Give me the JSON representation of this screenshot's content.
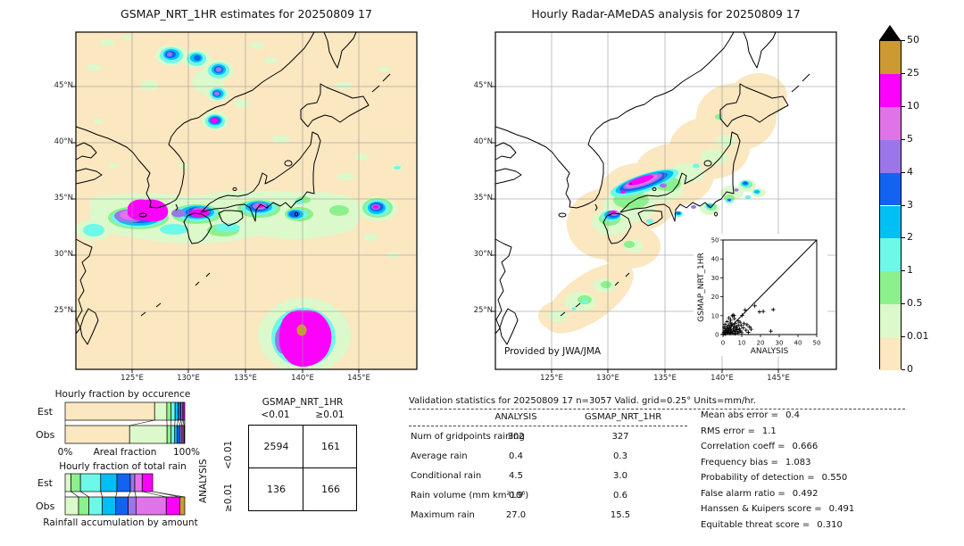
{
  "palette": {
    "cream": "#fbe7c0",
    "palegreen": "#dcf9cb",
    "green": "#8cf18c",
    "cyan": "#6ef8e8",
    "skyblue": "#00bff5",
    "blue": "#1263f0",
    "purple": "#9a76ea",
    "orchid": "#e173e8",
    "magenta": "#fb02fb",
    "tan": "#cc9933",
    "overflow": "#000000"
  },
  "left_map": {
    "title": "GSMAP_NRT_1HR estimates for 20250809 17",
    "lat_ticks": [
      "45°N",
      "40°N",
      "35°N",
      "30°N",
      "25°N"
    ],
    "lon_ticks": [
      "125°E",
      "130°E",
      "135°E",
      "140°E",
      "145°E"
    ]
  },
  "right_map": {
    "title": "Hourly Radar-AMeDAS analysis for 20250809 17",
    "lat_ticks": [
      "45°N",
      "40°N",
      "35°N",
      "30°N",
      "25°N"
    ],
    "lon_ticks": [
      "125°E",
      "130°E",
      "135°E",
      "140°E",
      "145°E"
    ],
    "credit": "Provided by JWA/JMA",
    "inset": {
      "xlabel": "ANALYSIS",
      "ylabel": "GSMAP_NRT_1HR",
      "tick_labels": [
        "0",
        "10",
        "20",
        "30",
        "40",
        "50"
      ],
      "axis_max": 50
    }
  },
  "colorbar": {
    "labels": [
      "50",
      "25",
      "10",
      "5",
      "4",
      "3",
      "2",
      "1",
      "0.5",
      "0.01",
      "0"
    ],
    "band_colors": [
      "#cc9933",
      "#fb02fb",
      "#e173e8",
      "#9a76ea",
      "#1263f0",
      "#00bff5",
      "#6ef8e8",
      "#8cf18c",
      "#dcf9cb",
      "#fbe7c0"
    ],
    "overflow_color": "#000000"
  },
  "occurrence_chart": {
    "title": "Hourly fraction by occurence",
    "row_labels": [
      "Est",
      "Obs"
    ],
    "axis_left": "0%",
    "axis_label": "Areal fraction",
    "axis_right": "100%",
    "est": [
      [
        "cream",
        74.8
      ],
      [
        "palegreen",
        10.2
      ],
      [
        "green",
        3.6
      ],
      [
        "cyan",
        3.3
      ],
      [
        "skyblue",
        2.6
      ],
      [
        "blue",
        2.2
      ],
      [
        "purple",
        1.3
      ],
      [
        "orchid",
        1.1
      ],
      [
        "magenta",
        0.9
      ]
    ],
    "obs": [
      [
        "cream",
        53.9
      ],
      [
        "palegreen",
        31.3
      ],
      [
        "green",
        3.4
      ],
      [
        "cyan",
        3.0
      ],
      [
        "skyblue",
        2.1
      ],
      [
        "blue",
        2.0
      ],
      [
        "purple",
        1.5
      ],
      [
        "orchid",
        1.2
      ],
      [
        "magenta",
        1.1
      ],
      [
        "tan",
        0.5
      ]
    ]
  },
  "totalrain_chart": {
    "title": "Hourly fraction of total rain",
    "row_labels": [
      "Est",
      "Obs"
    ],
    "footer": "Rainfall accumulation by amount",
    "est": [
      [
        "palegreen",
        4.9
      ],
      [
        "green",
        7.9
      ],
      [
        "cyan",
        16.9
      ],
      [
        "skyblue",
        13.6
      ],
      [
        "blue",
        11.2
      ],
      [
        "purple",
        3.7
      ],
      [
        "orchid",
        6.2
      ],
      [
        "magenta",
        8.8
      ]
    ],
    "obs": [
      [
        "palegreen",
        11.2
      ],
      [
        "green",
        8.7
      ],
      [
        "cyan",
        11.2
      ],
      [
        "skyblue",
        11.2
      ],
      [
        "blue",
        10.4
      ],
      [
        "purple",
        6.5
      ],
      [
        "orchid",
        25.3
      ],
      [
        "magenta",
        11.3
      ],
      [
        "tan",
        4.2
      ]
    ]
  },
  "contingency": {
    "col_title": "GSMAP_NRT_1HR",
    "row_title": "ANALYSIS",
    "col_labels": [
      "<0.01",
      "≥0.01"
    ],
    "row_labels": [
      "<0.01",
      "≥0.01"
    ],
    "values": [
      [
        "2594",
        "161"
      ],
      [
        "136",
        "166"
      ]
    ]
  },
  "stats_table": {
    "title": "Validation statistics for 20250809 17  n=3057 Valid. grid=0.25° Units=mm/hr.",
    "columns": [
      "ANALYSIS",
      "GSMAP_NRT_1HR"
    ],
    "rows": [
      {
        "label": "Num of gridpoints raining",
        "a": "302",
        "g": "327"
      },
      {
        "label": "Average rain",
        "a": "0.4",
        "g": "0.3"
      },
      {
        "label": "Conditional rain",
        "a": "4.5",
        "g": "3.0"
      },
      {
        "label": "Rain volume (mm km²10⁶)",
        "a": "0.9",
        "g": "0.6"
      },
      {
        "label": "Maximum rain",
        "a": "27.0",
        "g": "15.5"
      }
    ]
  },
  "metrics": {
    "rows": [
      {
        "label": "Mean abs error =",
        "value": "0.4"
      },
      {
        "label": "RMS error =",
        "value": "1.1"
      },
      {
        "label": "Correlation coeff =",
        "value": "0.666"
      },
      {
        "label": "Frequency bias =",
        "value": "1.083"
      },
      {
        "label": "Probability of detection =",
        "value": "0.550"
      },
      {
        "label": "False alarm ratio =",
        "value": "0.492"
      },
      {
        "label": "Hanssen & Kuipers score =",
        "value": "0.491"
      },
      {
        "label": "Equitable threat score =",
        "value": "0.310"
      }
    ]
  },
  "chart_data": [
    {
      "type": "heatmap",
      "title": "GSMAP_NRT_1HR estimates for 20250809 17",
      "x_ticks": [
        "125°E",
        "130°E",
        "135°E",
        "140°E",
        "145°E"
      ],
      "y_ticks": [
        "45°N",
        "40°N",
        "35°N",
        "30°N",
        "25°N"
      ],
      "units": "mm/hr",
      "levels": [
        0,
        0.01,
        0.5,
        1,
        2,
        3,
        4,
        5,
        10,
        25,
        50
      ],
      "level_colors": [
        "#fbe7c0",
        "#dcf9cb",
        "#8cf18c",
        "#6ef8e8",
        "#00bff5",
        "#1263f0",
        "#9a76ea",
        "#e173e8",
        "#fb02fb",
        "#cc9933"
      ],
      "description": "Satellite precipitation estimate over Japan; heavy rain band near 33-34N from 127E to 143E, cells over the Sea of Japan, and an intense system near 140E 22N."
    },
    {
      "type": "heatmap",
      "title": "Hourly Radar-AMeDAS analysis for 20250809 17",
      "x_ticks": [
        "125°E",
        "130°E",
        "135°E",
        "140°E",
        "145°E"
      ],
      "y_ticks": [
        "45°N",
        "40°N",
        "35°N",
        "30°N",
        "25°N"
      ],
      "units": "mm/hr",
      "levels": [
        0,
        0.01,
        0.5,
        1,
        2,
        3,
        4,
        5,
        10,
        25,
        50
      ],
      "level_colors": [
        "#fbe7c0",
        "#dcf9cb",
        "#8cf18c",
        "#6ef8e8",
        "#00bff5",
        "#1263f0",
        "#9a76ea",
        "#e173e8",
        "#fb02fb",
        "#cc9933"
      ],
      "credit": "Provided by JWA/JMA",
      "description": "Radar-gauge analysis limited to radar coverage around Japan; intense band over western Honshu and northern Kyushu."
    },
    {
      "type": "bar",
      "subtype": "stacked-horizontal",
      "title": "Hourly fraction by occurence",
      "categories": [
        "Est",
        "Obs"
      ],
      "xlabel": "Areal fraction",
      "xlim": [
        "0%",
        "100%"
      ],
      "level_bins": [
        "0-0.01",
        "0.01-0.5",
        "0.5-1",
        "1-2",
        "2-3",
        "3-4",
        "4-5",
        "5-10",
        "10-25",
        "25-50"
      ],
      "series": [
        {
          "name": "Est",
          "values": [
            74.8,
            10.2,
            3.6,
            3.3,
            2.6,
            2.2,
            1.3,
            1.1,
            0.9,
            0
          ]
        },
        {
          "name": "Obs",
          "values": [
            53.9,
            31.3,
            3.4,
            3.0,
            2.1,
            2.0,
            1.5,
            1.2,
            1.1,
            0.5
          ]
        }
      ]
    },
    {
      "type": "bar",
      "subtype": "stacked-horizontal",
      "title": "Hourly fraction of total rain",
      "categories": [
        "Est",
        "Obs"
      ],
      "xlabel": "Rainfall accumulation by amount",
      "level_bins": [
        "0.01-0.5",
        "0.5-1",
        "1-2",
        "2-3",
        "3-4",
        "4-5",
        "5-10",
        "10-25",
        "25-50"
      ],
      "series": [
        {
          "name": "Est",
          "values": [
            4.9,
            7.9,
            16.9,
            13.6,
            11.2,
            3.7,
            6.2,
            8.8,
            0
          ]
        },
        {
          "name": "Obs",
          "values": [
            11.2,
            8.7,
            11.2,
            11.2,
            10.4,
            6.5,
            25.3,
            11.3,
            4.2
          ]
        }
      ]
    },
    {
      "type": "table",
      "title": "Contingency table",
      "columns": [
        "GSMAP_NRT_1HR <0.01",
        "GSMAP_NRT_1HR ≥0.01"
      ],
      "rows": [
        "ANALYSIS <0.01",
        "ANALYSIS ≥0.01"
      ],
      "values": [
        [
          2594,
          161
        ],
        [
          136,
          166
        ]
      ]
    },
    {
      "type": "table",
      "title": "Validation statistics for 20250809 17  n=3057 Valid. grid=0.25° Units=mm/hr.",
      "columns": [
        "ANALYSIS",
        "GSMAP_NRT_1HR"
      ],
      "values": [
        [
          "Num of gridpoints raining",
          302,
          327
        ],
        [
          "Average rain",
          0.4,
          0.3
        ],
        [
          "Conditional rain",
          4.5,
          3.0
        ],
        [
          "Rain volume (mm km²10⁶)",
          0.9,
          0.6
        ],
        [
          "Maximum rain",
          27.0,
          15.5
        ]
      ]
    },
    {
      "type": "scatter",
      "xlabel": "ANALYSIS",
      "ylabel": "GSMAP_NRT_1HR",
      "xlim": [
        0,
        50
      ],
      "ylim": [
        0,
        50
      ],
      "diagonal": true,
      "marker": "+",
      "points": [
        [
          0.3,
          0.4
        ],
        [
          0.5,
          1.2
        ],
        [
          0.8,
          0.6
        ],
        [
          1,
          2
        ],
        [
          1.2,
          0.4
        ],
        [
          1.4,
          3
        ],
        [
          1.6,
          1
        ],
        [
          1.8,
          2.4
        ],
        [
          2,
          0.7
        ],
        [
          2.1,
          4.2
        ],
        [
          2.4,
          1.6
        ],
        [
          2.6,
          3
        ],
        [
          2.8,
          0.9
        ],
        [
          3,
          2.2
        ],
        [
          3.1,
          5
        ],
        [
          3.3,
          1.3
        ],
        [
          3.5,
          3.6
        ],
        [
          3.7,
          0.6
        ],
        [
          3.9,
          6.2
        ],
        [
          4,
          2.7
        ],
        [
          4.2,
          1
        ],
        [
          4.4,
          4.4
        ],
        [
          4.6,
          2
        ],
        [
          4.8,
          5.6
        ],
        [
          5,
          0.8
        ],
        [
          5.1,
          9.8
        ],
        [
          5.3,
          10.3
        ],
        [
          5.5,
          3.2
        ],
        [
          5.7,
          1.5
        ],
        [
          5.9,
          10
        ],
        [
          6,
          4.6
        ],
        [
          6.2,
          2.4
        ],
        [
          6.4,
          0.5
        ],
        [
          6.6,
          6
        ],
        [
          6.8,
          3.4
        ],
        [
          7,
          1.8
        ],
        [
          7.3,
          4
        ],
        [
          7.6,
          2.6
        ],
        [
          7.9,
          0.9
        ],
        [
          8.2,
          5
        ],
        [
          8.5,
          1.4
        ],
        [
          8.8,
          3
        ],
        [
          9.1,
          6.5
        ],
        [
          9.4,
          2
        ],
        [
          9.7,
          4.8
        ],
        [
          10,
          1
        ],
        [
          10.3,
          10.2
        ],
        [
          10.8,
          3.6
        ],
        [
          11.2,
          5.8
        ],
        [
          11.8,
          13
        ],
        [
          12.3,
          2.3
        ],
        [
          12.8,
          5.2
        ],
        [
          13.5,
          1.2
        ],
        [
          14.2,
          4
        ],
        [
          15,
          2.8
        ],
        [
          17,
          15.2
        ],
        [
          19.5,
          12
        ],
        [
          21.5,
          12.2
        ],
        [
          26.8,
          13.2
        ],
        [
          25.5,
          1.8
        ],
        [
          2.2,
          6.8
        ],
        [
          1.1,
          5.4
        ],
        [
          4.1,
          7.6
        ],
        [
          6.1,
          8.4
        ],
        [
          0.6,
          3.8
        ],
        [
          8.1,
          7.2
        ],
        [
          3.2,
          8.8
        ]
      ]
    },
    {
      "type": "metrics",
      "values": {
        "mean_abs_error": 0.4,
        "rms_error": 1.1,
        "correlation_coeff": 0.666,
        "frequency_bias": 1.083,
        "probability_of_detection": 0.55,
        "false_alarm_ratio": 0.492,
        "hanssen_kuipers_score": 0.491,
        "equitable_threat_score": 0.31
      }
    }
  ]
}
